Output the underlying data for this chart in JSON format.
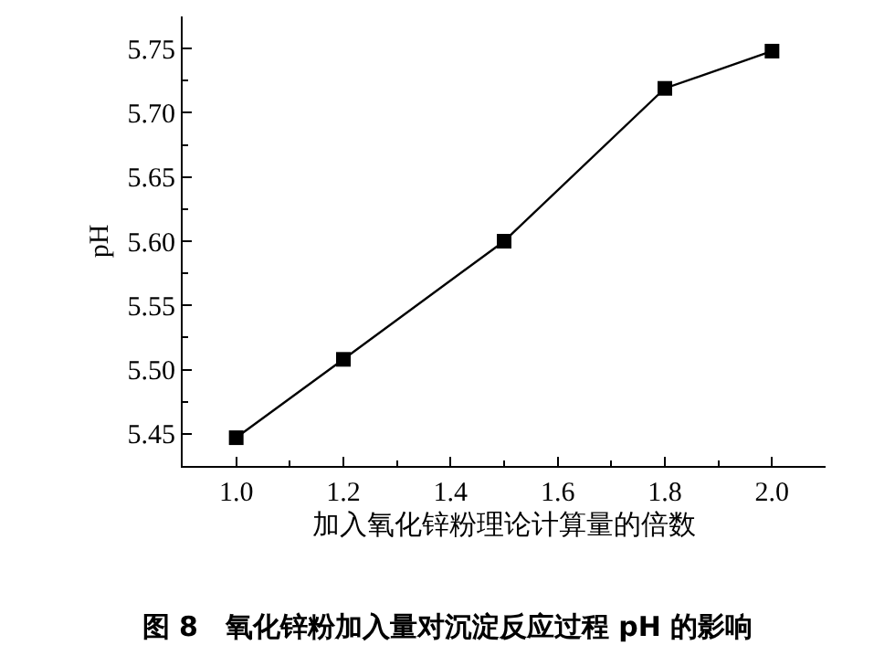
{
  "chart_data": {
    "type": "line",
    "title": "图 8　氧化锌粉加入量对沉淀反应过程 pH 的影响",
    "xlabel": "加入氧化锌粉理论计算量的倍数",
    "ylabel": "pH",
    "x": [
      1.0,
      1.2,
      1.5,
      1.8,
      2.0
    ],
    "series": [
      {
        "color": "#000000",
        "values": [
          5.447,
          5.508,
          5.6,
          5.719,
          5.748
        ]
      }
    ],
    "xlim": [
      0.9,
      2.1
    ],
    "xticks": [
      {
        "value": 1,
        "label": "1.0"
      },
      1.2,
      1.4,
      1.6,
      1.8,
      {
        "value": 2,
        "label": "2.0"
      }
    ],
    "ylim": [
      5.425,
      5.775
    ],
    "yticks": [
      5.45,
      {
        "value": 5.5,
        "label": "5.50"
      },
      5.55,
      {
        "value": 5.6,
        "label": "5.60"
      },
      5.65,
      {
        "value": 5.7,
        "label": "5.70"
      },
      5.75
    ],
    "marker": "square",
    "line_style": "solid"
  }
}
